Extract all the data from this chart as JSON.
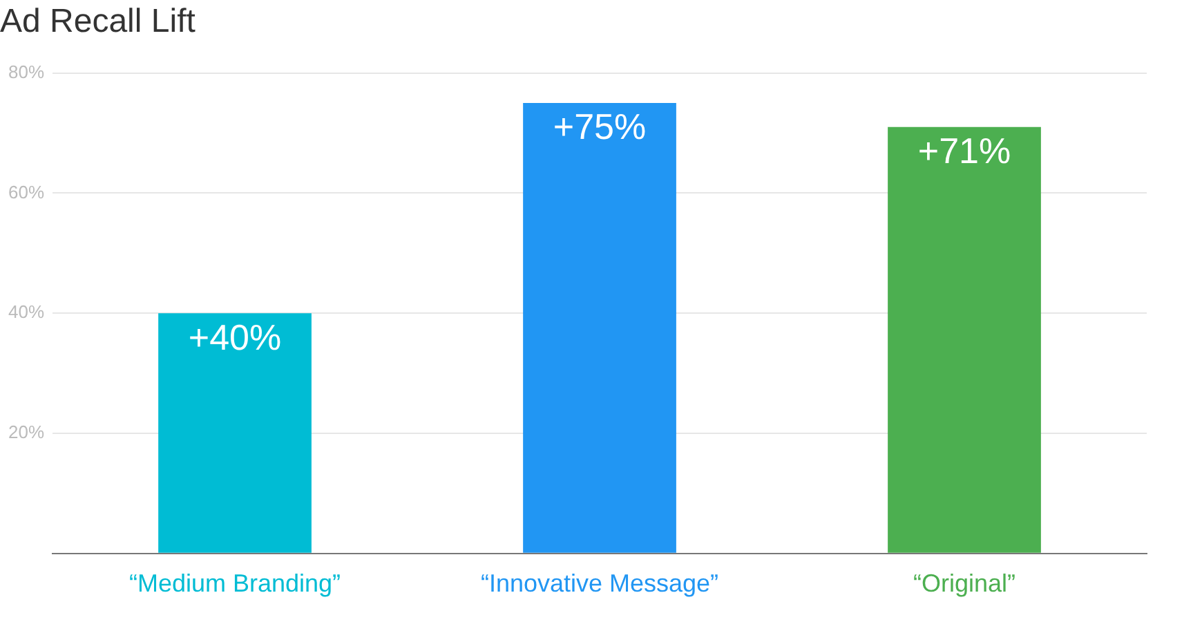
{
  "chart_data": {
    "type": "bar",
    "title": "Ad Recall Lift",
    "categories": [
      "“Medium Branding”",
      "“Innovative Message”",
      "“Original”"
    ],
    "values": [
      40,
      75,
      71
    ],
    "colors": [
      "#00bcd4",
      "#2196f3",
      "#4caf50"
    ],
    "value_labels": [
      "+40%",
      "+75%",
      "+71%"
    ],
    "ylim": [
      0,
      80
    ],
    "yticks": [
      {
        "value": 0,
        "label": null
      },
      {
        "value": 20,
        "label": "20%"
      },
      {
        "value": 40,
        "label": "40%"
      },
      {
        "value": 60,
        "label": "60%"
      },
      {
        "value": 80,
        "label": "80%"
      }
    ],
    "grid": "y",
    "legend": false
  }
}
